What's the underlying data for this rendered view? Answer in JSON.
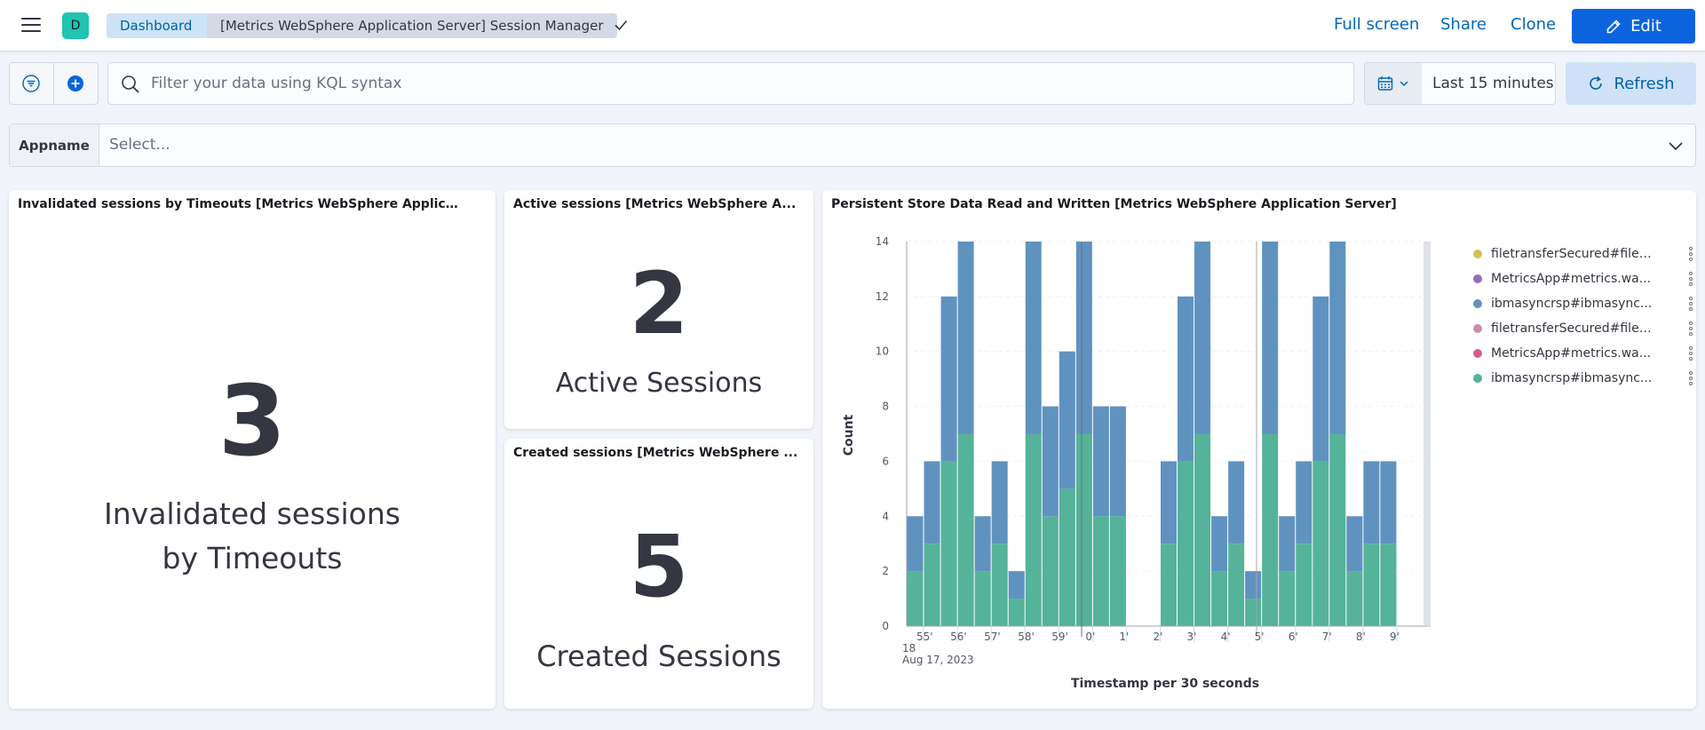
{
  "header": {
    "avatar_initial": "D",
    "breadcrumbs": [
      "Dashboard",
      "[Metrics WebSphere Application Server] Session Manager"
    ],
    "links": [
      "Full screen",
      "Share",
      "Clone"
    ],
    "edit_label": "Edit"
  },
  "query": {
    "placeholder": "Filter your data using KQL syntax",
    "time_range": "Last 15 minutes",
    "refresh_label": "Refresh"
  },
  "control": {
    "label": "Appname",
    "placeholder": "Select..."
  },
  "panels": {
    "invalidated": {
      "title": "Invalidated sessions by Timeouts [Metrics WebSphere Applicatio...",
      "value": "3",
      "label": "Invalidated sessions by Timeouts"
    },
    "active": {
      "title": "Active sessions [Metrics WebSphere A...",
      "value": "2",
      "label": "Active Sessions"
    },
    "created": {
      "title": "Created sessions [Metrics WebSphere ...",
      "value": "5",
      "label": "Created Sessions"
    },
    "persistent": {
      "title": "Persistent Store Data Read and Written [Metrics WebSphere Application Server]"
    }
  },
  "chart_data": {
    "type": "bar",
    "stacked": true,
    "ylabel": "Count",
    "xlabel": "Timestamp per 30 seconds",
    "ylim": [
      0,
      14
    ],
    "yticks": [
      0,
      2,
      4,
      6,
      8,
      10,
      12,
      14
    ],
    "x_tick_labels": [
      "55'",
      "56'",
      "57'",
      "58'",
      "59'",
      "0'",
      "1'",
      "2'",
      "3'",
      "4'",
      "5'",
      "6'",
      "7'",
      "8'",
      "9'"
    ],
    "x_origin_hour": "18",
    "x_origin_date": "Aug 17, 2023",
    "categories": [
      "54:30",
      "55:00",
      "55:30",
      "56:00",
      "56:30",
      "57:00",
      "57:30",
      "58:00",
      "58:30",
      "59:00",
      "59:30",
      "00:00",
      "00:30",
      "01:00",
      "01:30",
      "02:00",
      "02:30",
      "03:00",
      "03:30",
      "04:00",
      "04:30",
      "05:00",
      "05:30",
      "06:00",
      "06:30",
      "07:00",
      "07:30",
      "08:00",
      "08:30",
      "09:00",
      "09:30"
    ],
    "series": [
      {
        "name": "ibmasyncrsp#ibmasync...",
        "color": "#54b399",
        "values": [
          2,
          3,
          6,
          7,
          2,
          3,
          1,
          7,
          4,
          5,
          7,
          4,
          4,
          0,
          0,
          3,
          6,
          7,
          2,
          3,
          1,
          7,
          2,
          3,
          6,
          7,
          2,
          3,
          3,
          0,
          0
        ]
      },
      {
        "name": "ibmasyncrsp#ibmasync...",
        "color": "#6092c0",
        "values": [
          2,
          3,
          6,
          7,
          2,
          3,
          1,
          7,
          4,
          5,
          7,
          4,
          4,
          0,
          0,
          3,
          6,
          7,
          2,
          3,
          1,
          7,
          2,
          3,
          6,
          7,
          2,
          3,
          3,
          0,
          0
        ]
      }
    ],
    "legend": [
      {
        "name": "filetransferSecured#filet...",
        "color": "#d6bf57"
      },
      {
        "name": "MetricsApp#metrics.wa...",
        "color": "#9170b8"
      },
      {
        "name": "ibmasyncrsp#ibmasync...",
        "color": "#6092c0"
      },
      {
        "name": "filetransferSecured#filet...",
        "color": "#ca8eae"
      },
      {
        "name": "MetricsApp#metrics.wa...",
        "color": "#d36086"
      },
      {
        "name": "ibmasyncrsp#ibmasync...",
        "color": "#54b399"
      }
    ],
    "legend_position": "right",
    "grid": true
  }
}
